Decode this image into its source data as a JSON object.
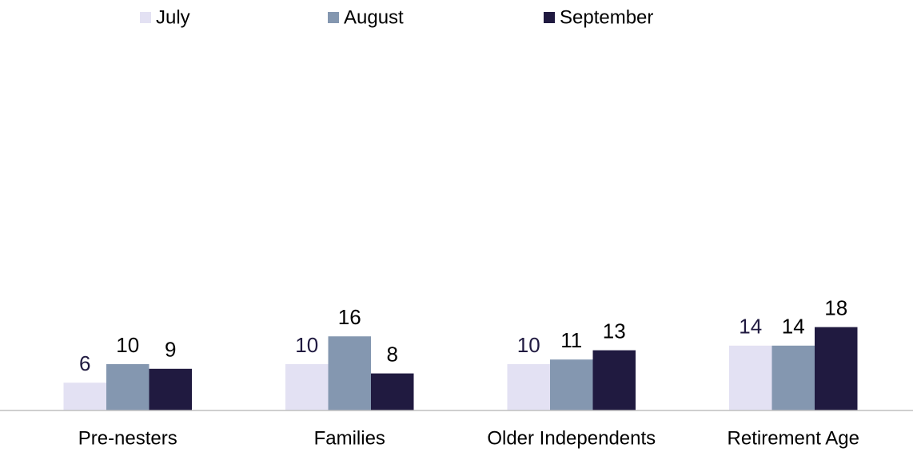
{
  "chart_data": {
    "type": "bar",
    "categories": [
      "Pre-nesters",
      "Families",
      "Older Independents",
      "Retirement Age"
    ],
    "series": [
      {
        "name": "July",
        "color": "#e3e1f3",
        "values": [
          6,
          10,
          10,
          14
        ]
      },
      {
        "name": "August",
        "color": "#8497b0",
        "values": [
          10,
          16,
          11,
          14
        ]
      },
      {
        "name": "September",
        "color": "#201a40",
        "values": [
          9,
          8,
          13,
          18
        ]
      }
    ],
    "ylim": [
      0,
      80
    ],
    "legend": "top"
  }
}
